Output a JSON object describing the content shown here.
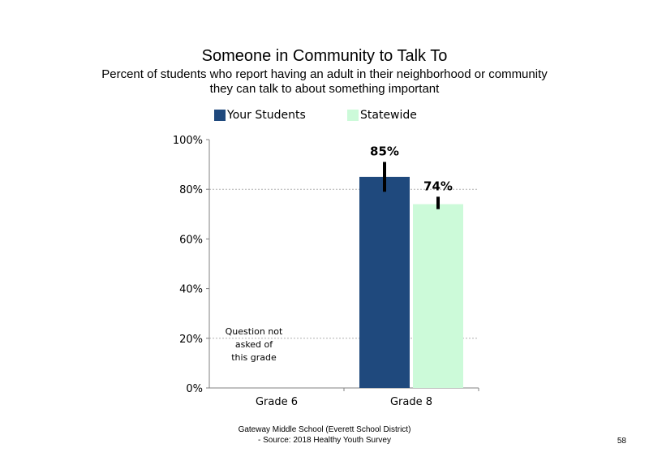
{
  "title": "Someone in Community to Talk To",
  "subtitle_lines": [
    "Percent of students who report having an adult in their neighborhood or community",
    "they can talk to about something important"
  ],
  "footer_lines": [
    "Gateway Middle School (Everett School District)",
    "- Source: 2018 Healthy  Youth Survey"
  ],
  "page_number": "58",
  "colors": {
    "your_students": "#1f497d",
    "statewide": "#ccfad9",
    "error_bar": "#000000",
    "gridline": "#b0b0b0",
    "axis": "#808080"
  },
  "chart_data": {
    "type": "bar",
    "title": "Someone in Community to Talk To",
    "categories": [
      "Grade 6",
      "Grade 8"
    ],
    "series": [
      {
        "name": "Your Students",
        "values": [
          null,
          85
        ],
        "labels": [
          "",
          "85%"
        ],
        "error_low": [
          null,
          79
        ],
        "error_high": [
          null,
          91
        ]
      },
      {
        "name": "Statewide",
        "values": [
          null,
          74
        ],
        "labels": [
          "",
          "74%"
        ],
        "error_low": [
          null,
          72
        ],
        "error_high": [
          null,
          77
        ]
      }
    ],
    "yticks": [
      "0%",
      "20%",
      "40%",
      "60%",
      "80%",
      "100%"
    ],
    "ylim": [
      0,
      100
    ],
    "grid": "dotted horizontal at 20% and 80%",
    "legend": "top",
    "annotation": {
      "category": "Grade 6",
      "lines": [
        "Question not",
        "asked of",
        "this grade"
      ]
    }
  }
}
